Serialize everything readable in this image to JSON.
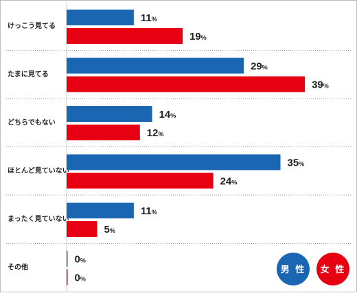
{
  "chart_data": {
    "type": "bar",
    "orientation": "horizontal",
    "categories": [
      "けっこう見てる",
      "たまに見てる",
      "どちらでもない",
      "ほとんど見ていない",
      "まったく見ていない",
      "その他"
    ],
    "unit": "%",
    "xlim": [
      0,
      50
    ],
    "grid": false,
    "legend_placement": "bottom-right",
    "series": [
      {
        "name": "男 性",
        "color": "#1a66b3",
        "values": [
          11,
          29,
          14,
          35,
          11,
          0
        ]
      },
      {
        "name": "女 性",
        "color": "#e60012",
        "values": [
          19,
          39,
          12,
          24,
          5,
          0
        ]
      }
    ]
  }
}
